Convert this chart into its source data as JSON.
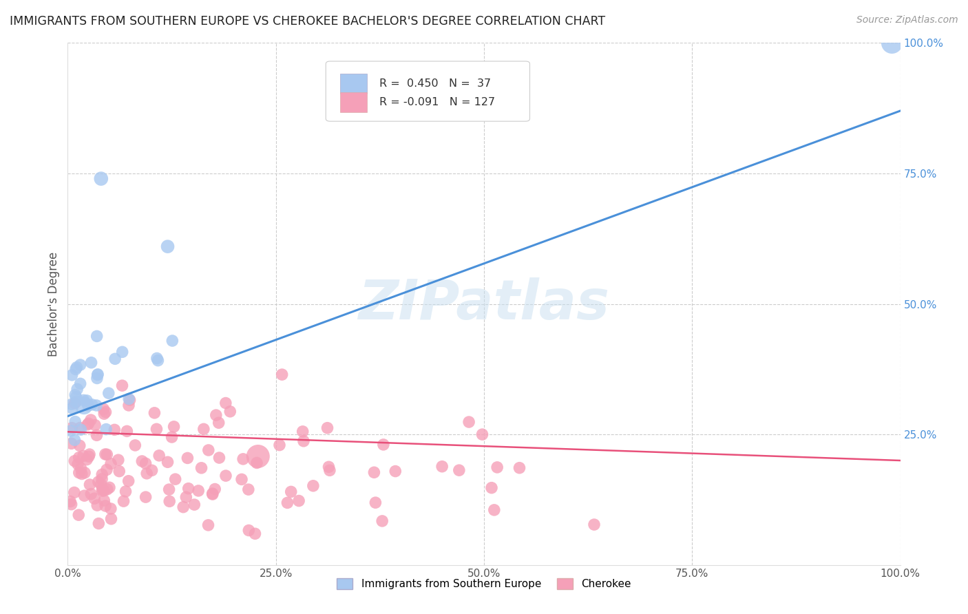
{
  "title": "IMMIGRANTS FROM SOUTHERN EUROPE VS CHEROKEE BACHELOR'S DEGREE CORRELATION CHART",
  "source": "Source: ZipAtlas.com",
  "ylabel": "Bachelor's Degree",
  "series1_name": "Immigrants from Southern Europe",
  "series1_color": "#a8c8f0",
  "series1_line_color": "#4a90d9",
  "series1_R": 0.45,
  "series1_N": 37,
  "series2_name": "Cherokee",
  "series2_color": "#f5a0b8",
  "series2_line_color": "#e8507a",
  "series2_R": -0.091,
  "series2_N": 127,
  "watermark": "ZIPatlas",
  "xlim": [
    0,
    1
  ],
  "ylim": [
    0,
    1
  ],
  "grid_ticks": [
    0.25,
    0.5,
    0.75,
    1.0
  ],
  "right_ytick_labels": [
    "25.0%",
    "50.0%",
    "75.0%",
    "100.0%"
  ],
  "xticklabels": [
    "0.0%",
    "25.0%",
    "50.0%",
    "75.0%",
    "100.0%"
  ],
  "background_color": "#ffffff",
  "grid_color": "#cccccc",
  "blue_trend": [
    0.0,
    0.285,
    1.0,
    0.87
  ],
  "pink_trend": [
    0.0,
    0.255,
    1.0,
    0.2
  ]
}
